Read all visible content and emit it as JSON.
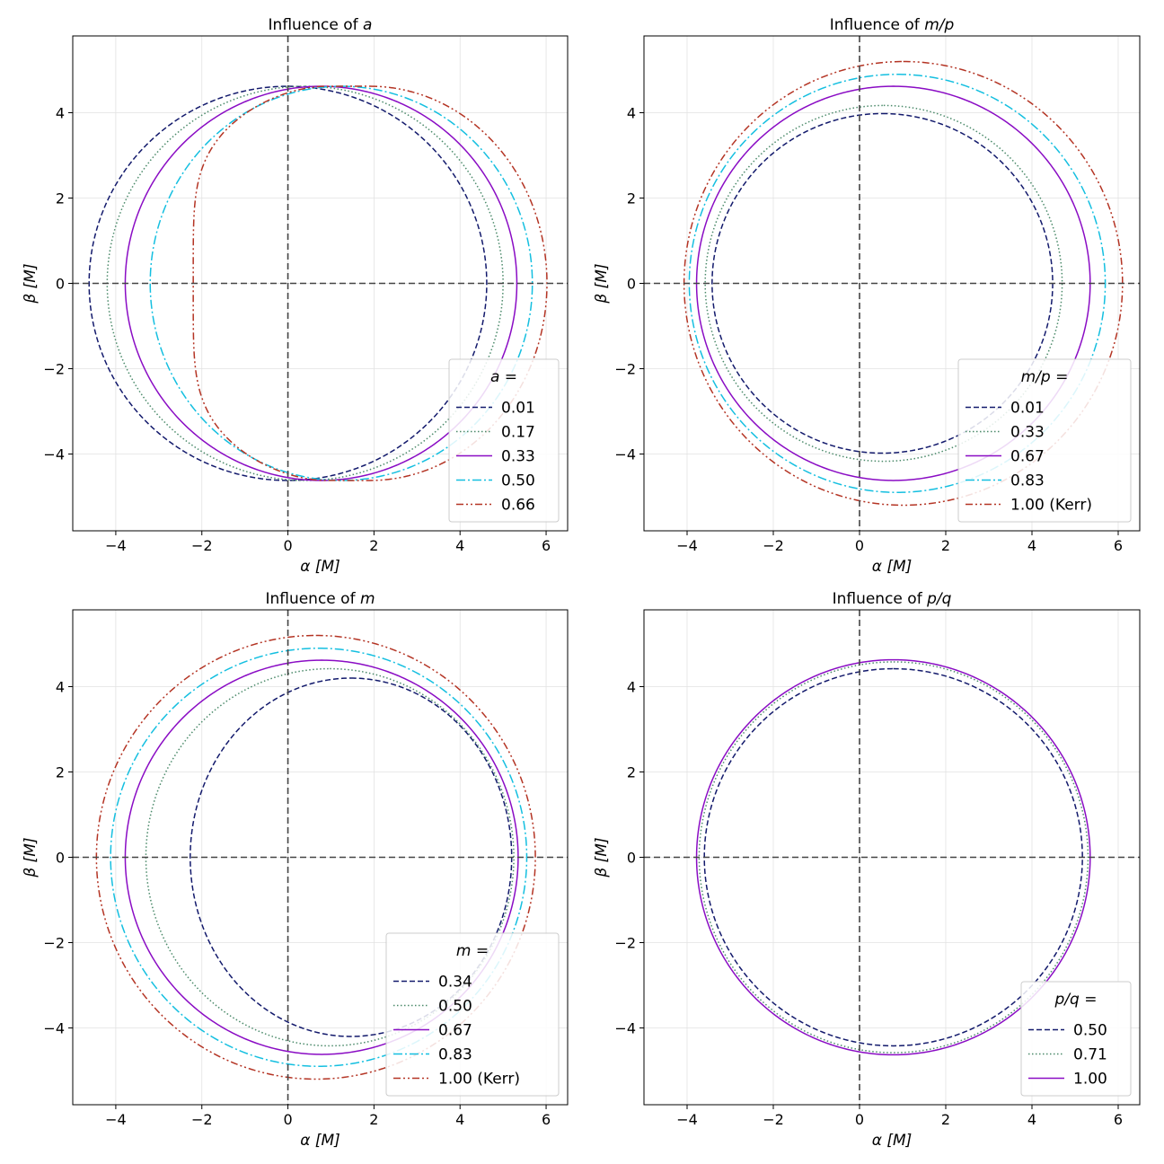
{
  "chart_data": [
    {
      "type": "line",
      "title": "Influence of a",
      "title_prefix": "Influence of ",
      "title_math": "a",
      "xlabel": "α [M]",
      "ylabel": "β [M]",
      "xlim": [
        -5.0,
        6.5
      ],
      "ylim": [
        -5.8,
        5.8
      ],
      "xticks": [
        -4,
        -2,
        0,
        2,
        4,
        6
      ],
      "yticks": [
        -4,
        -2,
        0,
        2,
        4
      ],
      "grid": true,
      "reference_lines": {
        "x": 0,
        "y": 0
      },
      "legend": {
        "title": "a =",
        "title_math": "a",
        "position": "lower right"
      },
      "series": [
        {
          "name": "0.01",
          "style": "dashed",
          "color": "#131a6c",
          "xmin": -4.62,
          "xmax": 4.62,
          "xc": 0.0,
          "ymax": 4.62
        },
        {
          "name": "0.17",
          "style": "dotted",
          "color": "#4b8a6a",
          "xmin": -4.2,
          "xmax": 5.0,
          "xc": 0.5,
          "ymax": 4.62
        },
        {
          "name": "0.33",
          "style": "solid",
          "color": "#8a0cc4",
          "xmin": -3.78,
          "xmax": 5.32,
          "xc": 0.8,
          "ymax": 4.62
        },
        {
          "name": "0.50",
          "style": "dashdot",
          "color": "#14bfe0",
          "xmin": -3.2,
          "xmax": 5.68,
          "xc": 0.88,
          "ymax": 4.62
        },
        {
          "name": "0.66",
          "style": "dashdotdot",
          "color": "#b43424",
          "xmin": -2.2,
          "xmax": 6.02,
          "xc": 0.9,
          "ymax": 4.62
        }
      ]
    },
    {
      "type": "line",
      "title": "Influence of m/p",
      "title_prefix": "Influence of ",
      "title_math": "m/p",
      "xlabel": "α [M]",
      "ylabel": "β [M]",
      "xlim": [
        -5.0,
        6.5
      ],
      "ylim": [
        -5.8,
        5.8
      ],
      "xticks": [
        -4,
        -2,
        0,
        2,
        4,
        6
      ],
      "yticks": [
        -4,
        -2,
        0,
        2,
        4
      ],
      "grid": true,
      "reference_lines": {
        "x": 0,
        "y": 0
      },
      "legend": {
        "title": "m/p =",
        "title_math": "m/p",
        "position": "lower right"
      },
      "series": [
        {
          "name": "0.01",
          "style": "dashed",
          "color": "#131a6c",
          "xmin": -3.42,
          "xmax": 4.48,
          "xc": 0.55,
          "ymax": 3.98
        },
        {
          "name": "0.33",
          "style": "dotted",
          "color": "#4b8a6a",
          "xmin": -3.58,
          "xmax": 4.7,
          "xc": 0.6,
          "ymax": 4.17
        },
        {
          "name": "0.67",
          "style": "solid",
          "color": "#8a0cc4",
          "xmin": -3.78,
          "xmax": 5.35,
          "xc": 0.8,
          "ymax": 4.62
        },
        {
          "name": "0.83",
          "style": "dashdot",
          "color": "#14bfe0",
          "xmin": -3.95,
          "xmax": 5.7,
          "xc": 0.85,
          "ymax": 4.9
        },
        {
          "name": "1.00 (Kerr)",
          "style": "dashdotdot",
          "color": "#b43424",
          "xmin": -4.07,
          "xmax": 6.1,
          "xc": 1.0,
          "ymax": 5.2
        }
      ]
    },
    {
      "type": "line",
      "title": "Influence of m",
      "title_prefix": "Influence of ",
      "title_math": "m",
      "xlabel": "α [M]",
      "ylabel": "β [M]",
      "xlim": [
        -5.0,
        6.5
      ],
      "ylim": [
        -5.8,
        5.8
      ],
      "xticks": [
        -4,
        -2,
        0,
        2,
        4,
        6
      ],
      "yticks": [
        -4,
        -2,
        0,
        2,
        4
      ],
      "grid": true,
      "reference_lines": {
        "x": 0,
        "y": 0
      },
      "legend": {
        "title": "m =",
        "title_math": "m",
        "position": "lower right"
      },
      "series": [
        {
          "name": "0.34",
          "style": "dashed",
          "color": "#131a6c",
          "xmin": -2.27,
          "xmax": 5.2,
          "xc": 1.15,
          "ymax": 4.2
        },
        {
          "name": "0.50",
          "style": "dotted",
          "color": "#4b8a6a",
          "xmin": -3.3,
          "xmax": 5.25,
          "xc": 0.9,
          "ymax": 4.42
        },
        {
          "name": "0.67",
          "style": "solid",
          "color": "#8a0cc4",
          "xmin": -3.78,
          "xmax": 5.35,
          "xc": 0.8,
          "ymax": 4.62
        },
        {
          "name": "0.83",
          "style": "dashdot",
          "color": "#14bfe0",
          "xmin": -4.12,
          "xmax": 5.55,
          "xc": 0.75,
          "ymax": 4.9
        },
        {
          "name": "1.00 (Kerr)",
          "style": "dashdotdot",
          "color": "#b43424",
          "xmin": -4.45,
          "xmax": 5.75,
          "xc": 0.7,
          "ymax": 5.2
        }
      ]
    },
    {
      "type": "line",
      "title": "Influence of p/q",
      "title_prefix": "Influence of ",
      "title_math": "p/q",
      "xlabel": "α [M]",
      "ylabel": "β [M]",
      "xlim": [
        -5.0,
        6.5
      ],
      "ylim": [
        -5.8,
        5.8
      ],
      "xticks": [
        -4,
        -2,
        0,
        2,
        4,
        6
      ],
      "yticks": [
        -4,
        -2,
        0,
        2,
        4
      ],
      "grid": true,
      "reference_lines": {
        "x": 0,
        "y": 0
      },
      "legend": {
        "title": "p/q =",
        "title_math": "p/q",
        "position": "lower right"
      },
      "series": [
        {
          "name": "0.50",
          "style": "dashed",
          "color": "#131a6c",
          "xmin": -3.6,
          "xmax": 5.17,
          "xc": 0.8,
          "ymax": 4.42
        },
        {
          "name": "0.71",
          "style": "dotted",
          "color": "#4b8a6a",
          "xmin": -3.72,
          "xmax": 5.3,
          "xc": 0.8,
          "ymax": 4.58
        },
        {
          "name": "1.00",
          "style": "solid",
          "color": "#8a0cc4",
          "xmin": -3.78,
          "xmax": 5.35,
          "xc": 0.8,
          "ymax": 4.63
        }
      ]
    }
  ]
}
